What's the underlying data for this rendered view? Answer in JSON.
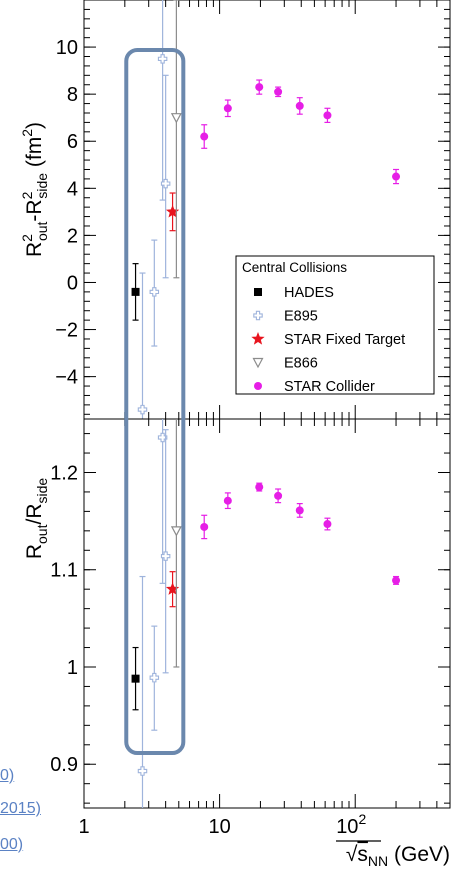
{
  "side_text": [
    "0)",
    "2015)",
    "00)"
  ],
  "chart_data": [
    {
      "type": "scatter",
      "panel": "top",
      "ylabel": "R²out-R²side (fm²)",
      "ylabel_parts": {
        "base": "R",
        "sup1": "2",
        "sub1": "out",
        "dash": "-R",
        "sup2": "2",
        "sub2": "side",
        "unit": " (fm",
        "unit_sup": "2",
        "unit_end": ")"
      },
      "xscale": "log",
      "xlim": [
        1,
        500
      ],
      "ylim": [
        -5.8,
        12
      ],
      "yticks": [
        -4,
        -2,
        0,
        2,
        4,
        6,
        8,
        10
      ],
      "ytick_labels": [
        "−4",
        "−2",
        "0",
        "2",
        "4",
        "6",
        "8",
        "10"
      ],
      "legend": {
        "title": "Central Collisions",
        "placement": "center-right",
        "entries": [
          "HADES",
          "E895",
          "STAR Fixed Target",
          "E866",
          "STAR Collider"
        ]
      },
      "series": [
        {
          "name": "HADES",
          "color": "#000000",
          "marker": "square",
          "points": [
            {
              "x": 2.4,
              "y": -0.4,
              "yerr_lo": 1.2,
              "yerr_hi": 1.2
            }
          ]
        },
        {
          "name": "E895",
          "color": "#9fb4dc",
          "marker": "open-cross",
          "points": [
            {
              "x": 2.7,
              "y": -5.4,
              "yerr_lo": 0.5,
              "yerr_hi": 5.8
            },
            {
              "x": 3.3,
              "y": -0.4,
              "yerr_lo": 2.3,
              "yerr_hi": 2.2
            },
            {
              "x": 3.8,
              "y": 9.5,
              "yerr_lo": 6.0,
              "yerr_hi": 3.0
            },
            {
              "x": 4.0,
              "y": 4.2,
              "yerr_lo": 4.0,
              "yerr_hi": 4.6
            }
          ]
        },
        {
          "name": "STAR Fixed Target",
          "color": "#e8141e",
          "marker": "star",
          "points": [
            {
              "x": 4.5,
              "y": 3.0,
              "yerr_lo": 0.8,
              "yerr_hi": 0.8
            }
          ]
        },
        {
          "name": "E866",
          "color": "#8c8c8c",
          "marker": "open-triangle-down",
          "points": [
            {
              "x": 4.8,
              "y": 7.0,
              "yerr_lo": 6.8,
              "yerr_hi": 5.0
            }
          ]
        },
        {
          "name": "STAR Collider",
          "color": "#e61ee6",
          "marker": "circle",
          "points": [
            {
              "x": 7.7,
              "y": 6.2,
              "yerr_lo": 0.5,
              "yerr_hi": 0.5
            },
            {
              "x": 11.5,
              "y": 7.4,
              "yerr_lo": 0.35,
              "yerr_hi": 0.35
            },
            {
              "x": 19.6,
              "y": 8.3,
              "yerr_lo": 0.3,
              "yerr_hi": 0.3
            },
            {
              "x": 27,
              "y": 8.1,
              "yerr_lo": 0.2,
              "yerr_hi": 0.2
            },
            {
              "x": 39,
              "y": 7.5,
              "yerr_lo": 0.35,
              "yerr_hi": 0.35
            },
            {
              "x": 62.4,
              "y": 7.1,
              "yerr_lo": 0.3,
              "yerr_hi": 0.3
            },
            {
              "x": 200,
              "y": 4.5,
              "yerr_lo": 0.3,
              "yerr_hi": 0.3
            }
          ]
        }
      ]
    },
    {
      "type": "scatter",
      "panel": "bottom",
      "ylabel": "Rout/Rside",
      "ylabel_parts": {
        "base": "R",
        "sub1": "out",
        "mid": "/R",
        "sub2": "side"
      },
      "xlabel": "√sNN (GeV)",
      "xlabel_parts": {
        "sqrt": "√",
        "s": "s",
        "sub": "NN",
        "unit": " (GeV)"
      },
      "xscale": "log",
      "xlim": [
        1,
        500
      ],
      "ylim": [
        0.855,
        1.255
      ],
      "yticks": [
        0.9,
        1.0,
        1.1,
        1.2
      ],
      "ytick_labels": [
        "0.9",
        "1",
        "1.1",
        "1.2"
      ],
      "xtick_labels": [
        "1",
        "10",
        "10",
        "2"
      ],
      "series": [
        {
          "name": "HADES",
          "color": "#000000",
          "marker": "square",
          "points": [
            {
              "x": 2.4,
              "y": 0.988,
              "yerr_lo": 0.032,
              "yerr_hi": 0.032
            }
          ]
        },
        {
          "name": "E895",
          "color": "#9fb4dc",
          "marker": "open-cross",
          "points": [
            {
              "x": 2.7,
              "y": 0.893,
              "yerr_lo": 0.04,
              "yerr_hi": 0.2
            },
            {
              "x": 3.3,
              "y": 0.989,
              "yerr_lo": 0.054,
              "yerr_hi": 0.053
            },
            {
              "x": 3.8,
              "y": 1.236,
              "yerr_lo": 0.15,
              "yerr_hi": 0.03
            },
            {
              "x": 4.0,
              "y": 1.114,
              "yerr_lo": 0.12,
              "yerr_hi": 0.13
            }
          ]
        },
        {
          "name": "STAR Fixed Target",
          "color": "#e8141e",
          "marker": "star",
          "points": [
            {
              "x": 4.5,
              "y": 1.08,
              "yerr_lo": 0.018,
              "yerr_hi": 0.018
            }
          ]
        },
        {
          "name": "E866",
          "color": "#8c8c8c",
          "marker": "open-triangle-down",
          "points": [
            {
              "x": 4.8,
              "y": 1.14,
              "yerr_lo": 0.14,
              "yerr_hi": 0.12
            }
          ]
        },
        {
          "name": "STAR Collider",
          "color": "#e61ee6",
          "marker": "circle",
          "points": [
            {
              "x": 7.7,
              "y": 1.144,
              "yerr_lo": 0.012,
              "yerr_hi": 0.012
            },
            {
              "x": 11.5,
              "y": 1.171,
              "yerr_lo": 0.008,
              "yerr_hi": 0.008
            },
            {
              "x": 19.6,
              "y": 1.185,
              "yerr_lo": 0.004,
              "yerr_hi": 0.004
            },
            {
              "x": 27,
              "y": 1.176,
              "yerr_lo": 0.007,
              "yerr_hi": 0.007
            },
            {
              "x": 39,
              "y": 1.161,
              "yerr_lo": 0.007,
              "yerr_hi": 0.007
            },
            {
              "x": 62.4,
              "y": 1.147,
              "yerr_lo": 0.006,
              "yerr_hi": 0.006
            },
            {
              "x": 200,
              "y": 1.089,
              "yerr_lo": 0.004,
              "yerr_hi": 0.004
            }
          ]
        }
      ]
    }
  ],
  "highlight_box": {
    "xrange": [
      2.05,
      5.4
    ],
    "color": "#6b88ad"
  }
}
